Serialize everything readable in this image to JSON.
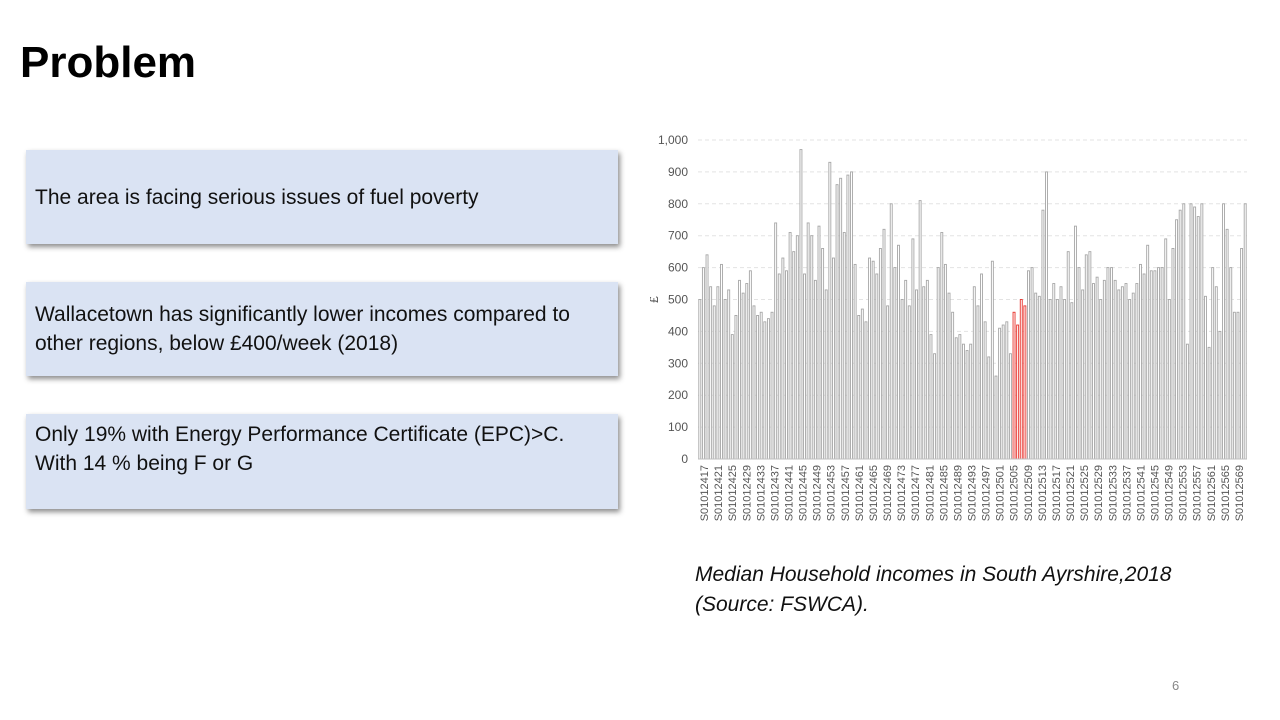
{
  "slide": {
    "title": "Problem",
    "points": [
      "The area is facing serious issues of fuel poverty",
      "Wallacetown has significantly lower incomes compared to other regions, below £400/week (2018)",
      "Only 19% with Energy Performance Certificate (EPC)>C. With 14 % being F or G"
    ],
    "caption": "Median Household incomes in South Ayrshire,2018 (Source: FSWCA).",
    "page_number": "6"
  },
  "chart_data": {
    "type": "bar",
    "ylabel": "£",
    "xlabel": "",
    "ylim": [
      0,
      1000
    ],
    "yticks": [
      "0",
      "100",
      "200",
      "300",
      "400",
      "500",
      "600",
      "700",
      "800",
      "900",
      "1,000"
    ],
    "tick_labels": [
      "S01012417",
      "S01012421",
      "S01012425",
      "S01012429",
      "S01012433",
      "S01012437",
      "S01012441",
      "S01012445",
      "S01012449",
      "S01012453",
      "S01012457",
      "S01012461",
      "S01012465",
      "S01012469",
      "S01012473",
      "S01012477",
      "S01012481",
      "S01012485",
      "S01012489",
      "S01012493",
      "S01012497",
      "S01012501",
      "S01012505",
      "S01012509",
      "S01012513",
      "S01012517",
      "S01012521",
      "S01012525",
      "S01012529",
      "S01012533",
      "S01012537",
      "S01012541",
      "S01012545",
      "S01012549",
      "S01012553",
      "S01012557",
      "S01012561",
      "S01012565",
      "S01012569"
    ],
    "grid": true,
    "colors": {
      "default": "#a6a6a6",
      "highlight": "#e8322b"
    },
    "highlight_range": [
      87,
      90
    ],
    "values": [
      500,
      600,
      640,
      540,
      480,
      540,
      610,
      500,
      530,
      390,
      450,
      560,
      520,
      550,
      590,
      480,
      450,
      460,
      430,
      440,
      460,
      740,
      580,
      630,
      590,
      710,
      650,
      700,
      970,
      580,
      740,
      700,
      560,
      730,
      660,
      530,
      930,
      630,
      860,
      880,
      710,
      890,
      900,
      610,
      450,
      470,
      430,
      630,
      620,
      580,
      660,
      720,
      480,
      800,
      600,
      670,
      500,
      560,
      480,
      690,
      530,
      810,
      540,
      560,
      390,
      330,
      600,
      710,
      610,
      520,
      460,
      380,
      390,
      360,
      340,
      360,
      540,
      480,
      580,
      430,
      320,
      620,
      260,
      410,
      420,
      430,
      330,
      460,
      420,
      500,
      480,
      590,
      600,
      520,
      510,
      780,
      900,
      500,
      550,
      500,
      540,
      500,
      650,
      490,
      730,
      600,
      530,
      640,
      650,
      550,
      570,
      500,
      560,
      600,
      600,
      560,
      530,
      540,
      550,
      500,
      520,
      550,
      610,
      580,
      670,
      590,
      590,
      600,
      600,
      690,
      500,
      660,
      750,
      780,
      800,
      360,
      800,
      790,
      760,
      800,
      510,
      350,
      600,
      540,
      400,
      800,
      720,
      600,
      460,
      460,
      660,
      800
    ]
  }
}
